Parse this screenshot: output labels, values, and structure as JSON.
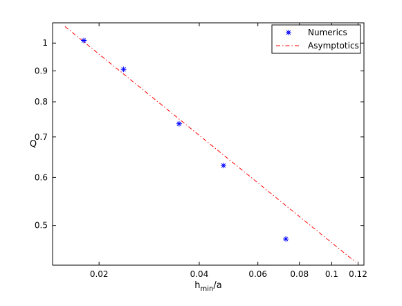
{
  "chart_data": {
    "type": "scatter",
    "x_scale": "log",
    "y_scale": "log",
    "xlim": [
      0.0145,
      0.125
    ],
    "ylim": [
      0.43,
      1.08
    ],
    "xticks": [
      0.02,
      0.04,
      0.06,
      0.08,
      0.1,
      0.12
    ],
    "xtick_labels": [
      "0.02",
      "0.04",
      "0.06",
      "0.08",
      "0.1",
      "0.12"
    ],
    "yticks": [
      0.5,
      0.6,
      0.7,
      0.8,
      0.9,
      1
    ],
    "ytick_labels": [
      "0.5",
      "0.6",
      "0.7",
      "0.8",
      "0.9",
      "1"
    ],
    "xlabel": {
      "main": "h",
      "sub": "min",
      "rest": "/a"
    },
    "ylabel": "Q",
    "grid": false,
    "legend_position": "top-right",
    "series": [
      {
        "name": "Numerics",
        "kind": "scatter",
        "marker": "asterisk",
        "color": "#0000ff",
        "points": [
          [
            0.018,
            1.01
          ],
          [
            0.0237,
            0.905
          ],
          [
            0.0348,
            0.736
          ],
          [
            0.0473,
            0.628
          ],
          [
            0.0728,
            0.475
          ]
        ]
      },
      {
        "name": "Asymptotics",
        "kind": "line",
        "style": "dash-dot",
        "color": "#ff0000",
        "points": [
          [
            0.0158,
            1.065
          ],
          [
            0.118,
            0.435
          ]
        ]
      }
    ]
  }
}
